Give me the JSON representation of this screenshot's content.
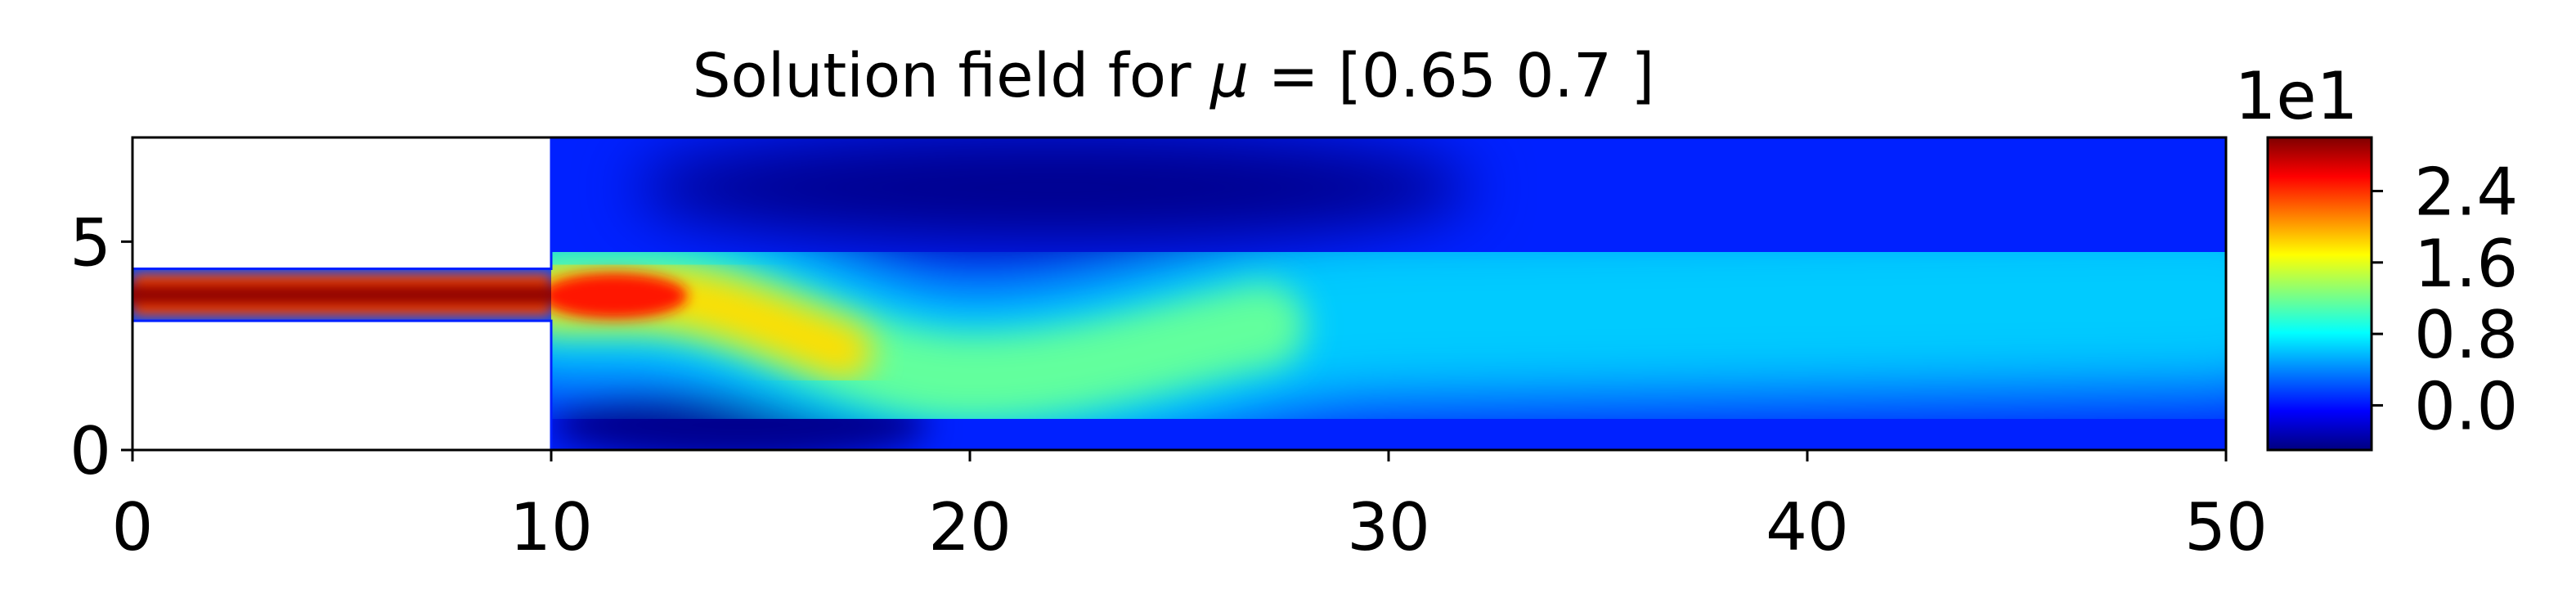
{
  "chart_data": {
    "type": "heatmap",
    "title_prefix": "Solution field for ",
    "title_symbol": "μ",
    "title_suffix": " = [0.65 0.7 ]",
    "colormap": "jet",
    "xlim": [
      0,
      50
    ],
    "ylim": [
      0,
      7.5
    ],
    "x_ticks": [
      0,
      10,
      20,
      30,
      40,
      50
    ],
    "y_ticks": [
      0,
      5
    ],
    "domain": {
      "inlet_channel": {
        "x": [
          0,
          10
        ],
        "y": [
          3.1,
          4.35
        ]
      },
      "main_chamber": {
        "x": [
          10,
          50
        ],
        "y": [
          0,
          7.5
        ]
      }
    },
    "colorbar": {
      "multiplier": "1e1",
      "range": [
        -0.5,
        3.0
      ],
      "ticks": [
        0.0,
        0.8,
        1.6,
        2.4
      ],
      "tick_labels": [
        "0.0",
        "0.8",
        "1.6",
        "2.4"
      ]
    },
    "field": {
      "description_points": [
        {
          "x": 5,
          "y": 3.75,
          "value": 3.0
        },
        {
          "x": 13,
          "y": 3.5,
          "value": 2.3
        },
        {
          "x": 20,
          "y": 1.7,
          "value": 1.1
        },
        {
          "x": 30,
          "y": 3.2,
          "value": 0.8
        },
        {
          "x": 45,
          "y": 3.5,
          "value": 0.3
        },
        {
          "x": 22,
          "y": 6.4,
          "value": -0.4
        },
        {
          "x": 14,
          "y": 0.6,
          "value": -0.4
        }
      ]
    }
  }
}
